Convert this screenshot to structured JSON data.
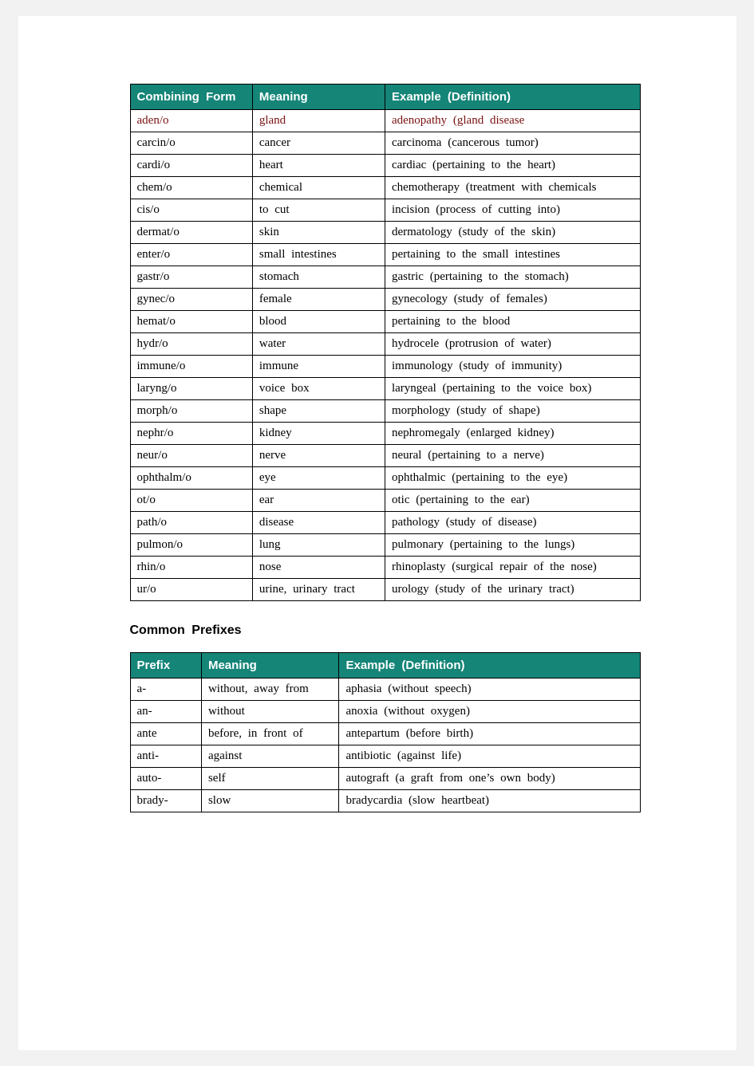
{
  "combining_table": {
    "header_bg": "#158578",
    "header_fg": "#ffffff",
    "border_color": "#000000",
    "maroon_color": "#7a1010",
    "columns": [
      "Combining Form",
      "Meaning",
      "Example (Definition)"
    ],
    "rows": [
      {
        "cells": [
          "aden/o",
          "gland",
          "adenopathy (gland disease"
        ],
        "maroon": true
      },
      {
        "cells": [
          "carcin/o",
          "cancer",
          "carcinoma (cancerous tumor)"
        ],
        "maroon": false
      },
      {
        "cells": [
          "cardi/o",
          "heart",
          "cardiac (pertaining to the heart)"
        ],
        "maroon": false
      },
      {
        "cells": [
          "chem/o",
          "chemical",
          "chemotherapy (treatment with chemicals"
        ],
        "maroon": false
      },
      {
        "cells": [
          "cis/o",
          "to cut",
          "incision (process of cutting into)"
        ],
        "maroon": false
      },
      {
        "cells": [
          "dermat/o",
          "skin",
          "dermatology (study of the skin)"
        ],
        "maroon": false
      },
      {
        "cells": [
          "enter/o",
          "small intestines",
          "pertaining to the small intestines"
        ],
        "maroon": false
      },
      {
        "cells": [
          "gastr/o",
          "stomach",
          "gastric (pertaining to the stomach)"
        ],
        "maroon": false
      },
      {
        "cells": [
          "gynec/o",
          "female",
          "gynecology (study of females)"
        ],
        "maroon": false
      },
      {
        "cells": [
          "hemat/o",
          "blood",
          "pertaining to the blood"
        ],
        "maroon": false
      },
      {
        "cells": [
          "hydr/o",
          "water",
          "hydrocele (protrusion of water)"
        ],
        "maroon": false
      },
      {
        "cells": [
          "immune/o",
          "immune",
          "immunology (study of immunity)"
        ],
        "maroon": false
      },
      {
        "cells": [
          "laryng/o",
          "voice box",
          "laryngeal (pertaining to the voice box)"
        ],
        "maroon": false
      },
      {
        "cells": [
          "morph/o",
          "shape",
          "morphology (study of shape)"
        ],
        "maroon": false
      },
      {
        "cells": [
          "nephr/o",
          "kidney",
          "nephromegaly (enlarged kidney)"
        ],
        "maroon": false
      },
      {
        "cells": [
          "neur/o",
          "nerve",
          "neural (pertaining to a nerve)"
        ],
        "maroon": false
      },
      {
        "cells": [
          "ophthalm/o",
          "eye",
          "ophthalmic (pertaining to the eye)"
        ],
        "maroon": false
      },
      {
        "cells": [
          "ot/o",
          "ear",
          "otic (pertaining to the ear)"
        ],
        "maroon": false
      },
      {
        "cells": [
          "path/o",
          "disease",
          "pathology (study of disease)"
        ],
        "maroon": false
      },
      {
        "cells": [
          "pulmon/o",
          "lung",
          "pulmonary (pertaining to the lungs)"
        ],
        "maroon": false
      },
      {
        "cells": [
          "rhin/o",
          "nose",
          "rhinoplasty (surgical repair of the nose)"
        ],
        "maroon": false
      },
      {
        "cells": [
          "ur/o",
          "urine, urinary tract",
          "urology (study of the urinary tract)"
        ],
        "maroon": false
      }
    ]
  },
  "section_heading": "Common Prefixes",
  "prefix_table": {
    "header_bg": "#158578",
    "header_fg": "#ffffff",
    "border_color": "#000000",
    "columns": [
      "Prefix",
      "Meaning",
      "Example (Definition)"
    ],
    "rows": [
      {
        "cells": [
          "a-",
          "without, away from",
          "aphasia (without speech)"
        ]
      },
      {
        "cells": [
          "an-",
          "without",
          "anoxia (without oxygen)"
        ]
      },
      {
        "cells": [
          "ante",
          "before, in front of",
          "antepartum (before birth)"
        ]
      },
      {
        "cells": [
          "anti-",
          "against",
          "antibiotic (against life)"
        ]
      },
      {
        "cells": [
          "auto-",
          "self",
          "autograft (a graft from one’s own body)"
        ]
      },
      {
        "cells": [
          "brady-",
          "slow",
          "bradycardia (slow heartbeat)"
        ]
      }
    ]
  }
}
